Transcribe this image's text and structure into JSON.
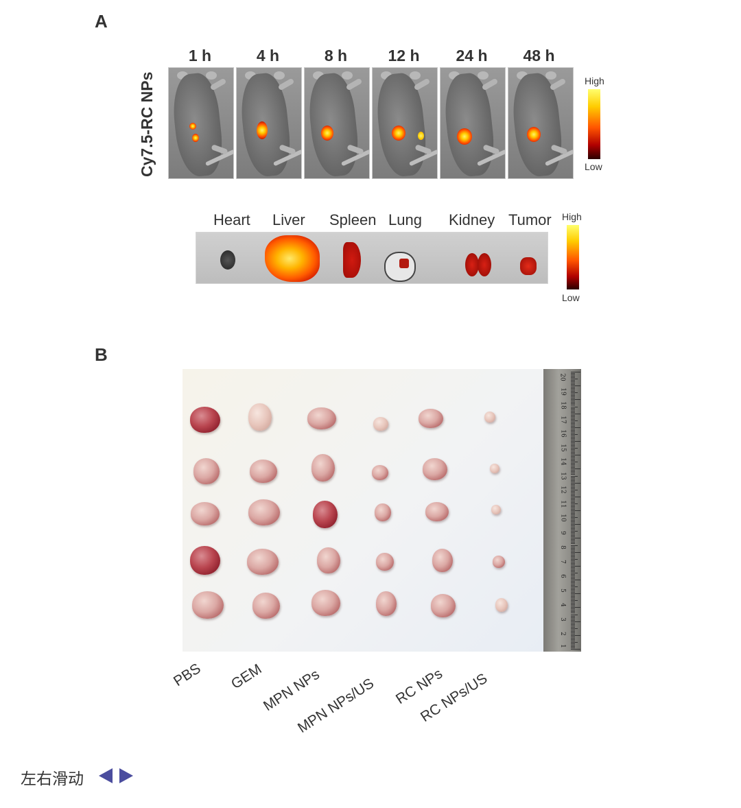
{
  "panel_a": {
    "letter": "A",
    "row_label": "Cy7.5-RC NPs",
    "timepoints": [
      "1 h",
      "4 h",
      "8 h",
      "12 h",
      "24 h",
      "48 h"
    ],
    "scale_high": "High",
    "scale_low": "Low",
    "organs": [
      "Heart",
      "Liver",
      "Spleen",
      "Lung",
      "Kidney",
      "Tumor"
    ],
    "organ_scale_high": "High",
    "organ_scale_low": "Low"
  },
  "panel_b": {
    "letter": "B",
    "groups": [
      "PBS",
      "GEM",
      "MPN NPs",
      "MPN NPs/US",
      "RC NPs",
      "RC NPs/US"
    ],
    "ruler_numbers": [
      "20",
      "19",
      "18",
      "17",
      "16",
      "15",
      "14",
      "13",
      "12",
      "11",
      "10",
      "9",
      "8",
      "7",
      "6",
      "5",
      "4",
      "3",
      "2",
      "1"
    ]
  },
  "footer": {
    "slide_hint": "左右滑动"
  },
  "colors": {
    "arrow": "#4b4d9e",
    "text": "#333333"
  }
}
